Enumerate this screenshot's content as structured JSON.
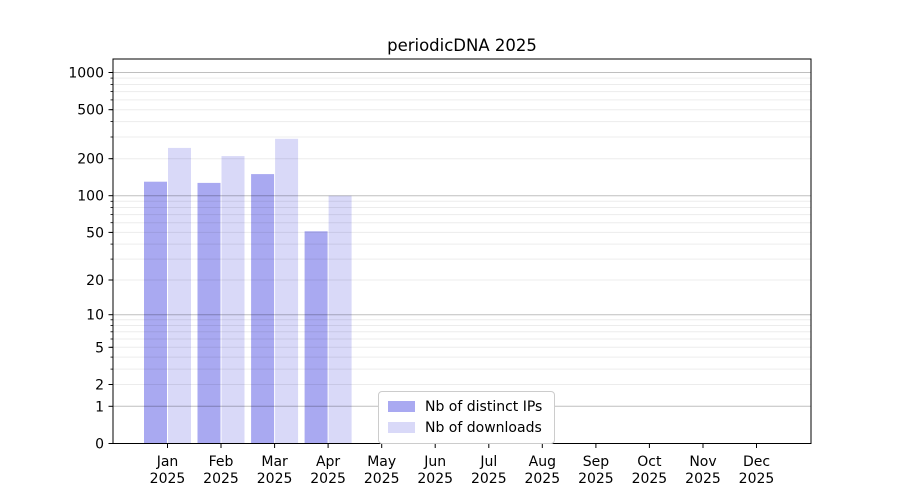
{
  "chart_data": {
    "type": "bar",
    "title": "periodicDNA 2025",
    "categories": [
      "Jan 2025",
      "Feb 2025",
      "Mar 2025",
      "Apr 2025",
      "May 2025",
      "Jun 2025",
      "Jul 2025",
      "Aug 2025",
      "Sep 2025",
      "Oct 2025",
      "Nov 2025",
      "Dec 2025"
    ],
    "series": [
      {
        "name": "Nb of distinct IPs",
        "color": "#a9a9f1",
        "values": [
          130,
          127,
          150,
          51,
          null,
          null,
          null,
          null,
          null,
          null,
          null,
          null
        ]
      },
      {
        "name": "Nb of downloads",
        "color": "#d9d9f8",
        "values": [
          245,
          210,
          290,
          100,
          null,
          null,
          null,
          null,
          null,
          null,
          null,
          null
        ]
      }
    ],
    "xlabel": "",
    "ylabel": "",
    "yscale": "log10(value+1)",
    "yticks": [
      0,
      1,
      2,
      5,
      10,
      20,
      50,
      100,
      200,
      500,
      1000
    ],
    "ylim": [
      0,
      1286
    ],
    "grid": {
      "major_lines": [
        1,
        10,
        100,
        1000
      ],
      "minor_subs": [
        2,
        3,
        4,
        5,
        6,
        7,
        8,
        9
      ],
      "major_color": "rgba(0,0,0,0.25)",
      "minor_color": "rgba(0,0,0,0.075)"
    },
    "legend_position": "inside-bottom-center",
    "axis_color": "#000000",
    "tick_label_color": "#000000",
    "background_color": "#ffffff"
  }
}
